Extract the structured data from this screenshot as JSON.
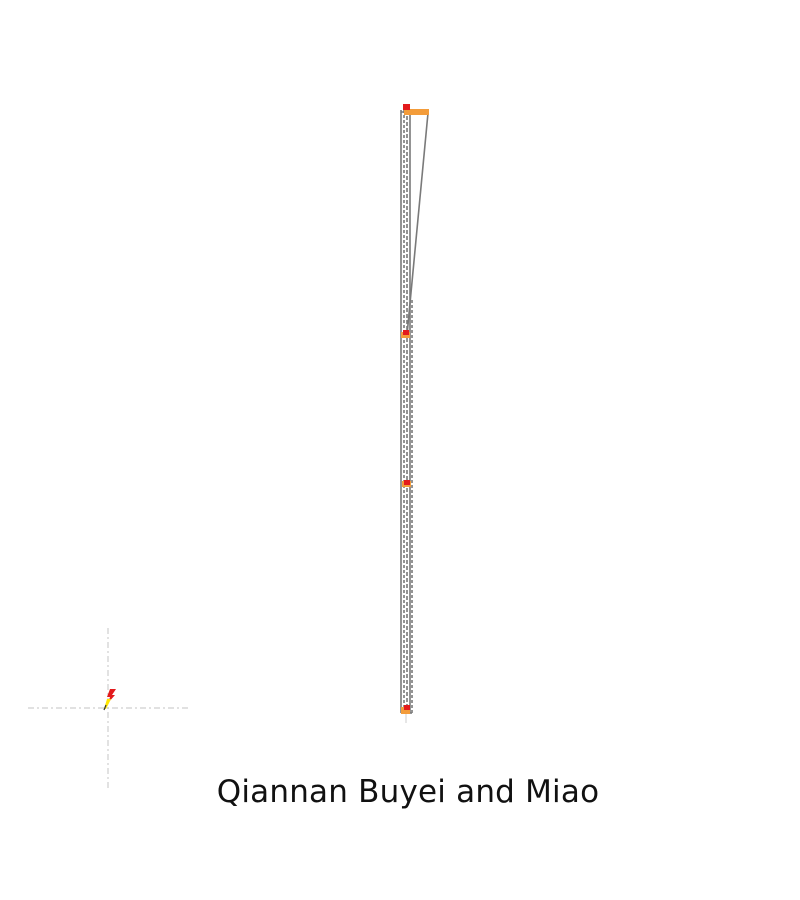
{
  "map": {
    "caption": "Qiannan Buyei and Miao",
    "colors": {
      "outline": "#7a7a7a",
      "marker_red": "#e31a1c",
      "marker_orange": "#f39c3a",
      "marker_yellow": "#ffe600",
      "crosshair": "#cfcfcf"
    },
    "icons": {
      "north_arrow": "lightning-bolt-north-arrow-icon",
      "crosshair": "crosshair-icon"
    }
  }
}
